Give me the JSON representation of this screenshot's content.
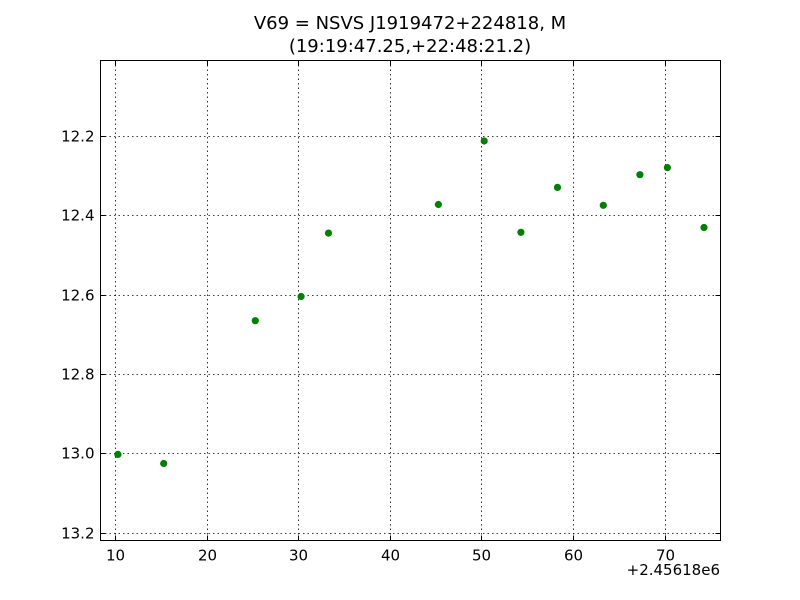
{
  "chart_data": {
    "type": "scatter",
    "title": "V69 = NSVS J1919472+224818, M",
    "subtitle": "(19:19:47.25,+22:48:21.2)",
    "xlabel": "",
    "ylabel": "",
    "x_offset_label": "+2.45618e6",
    "xlim": [
      8.4,
      76.1
    ],
    "ylim": [
      12.01,
      13.22
    ],
    "y_inverted": true,
    "grid": true,
    "xticks": [
      10,
      20,
      30,
      40,
      50,
      60,
      70
    ],
    "xtick_labels": [
      "10",
      "20",
      "30",
      "40",
      "50",
      "60",
      "70"
    ],
    "yticks": [
      12.2,
      12.4,
      12.6,
      12.8,
      13.0,
      13.2
    ],
    "ytick_labels": [
      "12.2",
      "12.4",
      "12.6",
      "12.8",
      "13.0",
      "13.2"
    ],
    "marker_color": "#008000",
    "series": [
      {
        "x": [
          10.3,
          15.3,
          25.3,
          30.3,
          33.3,
          45.3,
          50.3,
          54.3,
          58.3,
          63.3,
          67.3,
          70.3,
          74.3
        ],
        "y": [
          13.003,
          13.026,
          12.666,
          12.605,
          12.445,
          12.373,
          12.213,
          12.443,
          12.33,
          12.375,
          12.298,
          12.28,
          12.431
        ]
      }
    ]
  }
}
